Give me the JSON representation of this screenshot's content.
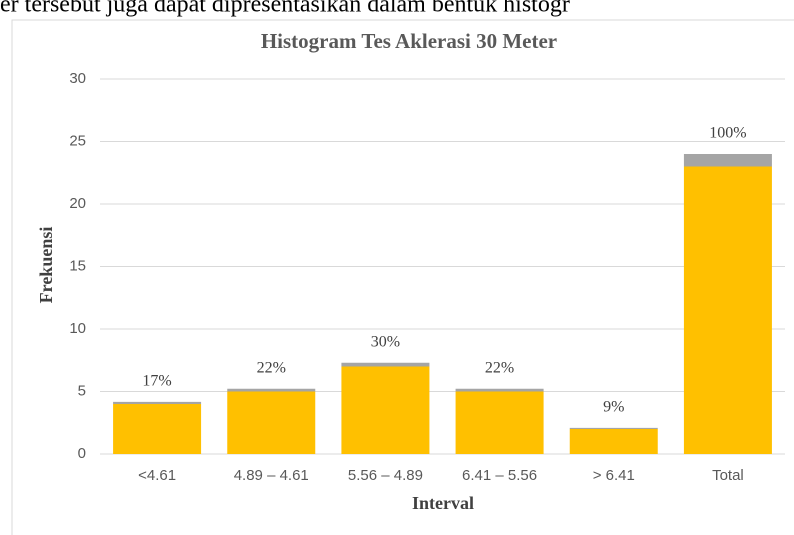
{
  "caption": "er tersebut juga dapat dipresentasikan dalam bentuk histogr",
  "chart_data": {
    "type": "stacked_bar",
    "title": "Histogram Tes Aklerasi  30 Meter",
    "xlabel": "Interval",
    "ylabel": "Frekuensi",
    "categories": [
      "<4.61",
      "4.89 – 4.61",
      "5.56 – 4.89",
      "6.41 – 5.56",
      "> 6.41",
      "Total"
    ],
    "series": [
      {
        "color": "#ffc000",
        "values": [
          4,
          5,
          7,
          5,
          2,
          23
        ]
      },
      {
        "color": "#a5a5a5",
        "values": [
          0.17,
          0.22,
          0.3,
          0.22,
          0.09,
          1.0
        ],
        "value_labels": [
          "17%",
          "22%",
          "30%",
          "22%",
          "9%",
          "100%"
        ]
      }
    ],
    "ylim": [
      0,
      30
    ],
    "yticks": [
      0,
      5,
      10,
      15,
      20,
      25,
      30
    ],
    "grid": true
  }
}
